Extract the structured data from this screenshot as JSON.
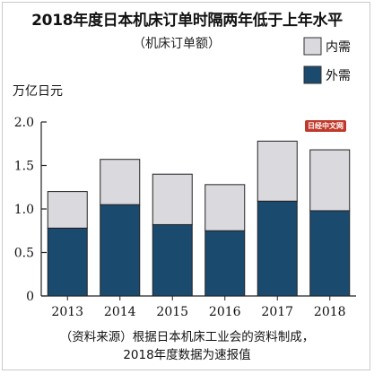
{
  "chart_data": {
    "type": "bar",
    "stacked": true,
    "title": "2018年度日本机床订单时隔两年低于上年水平",
    "subtitle": "（机床订单额）",
    "ylabel": "万亿日元",
    "categories": [
      "2013",
      "2014",
      "2015",
      "2016",
      "2017",
      "2018"
    ],
    "series": [
      {
        "name": "外需",
        "values": [
          0.78,
          1.05,
          0.82,
          0.75,
          1.09,
          0.98
        ],
        "color": "#1b4a6f"
      },
      {
        "name": "内需",
        "values": [
          0.42,
          0.52,
          0.58,
          0.53,
          0.69,
          0.7
        ],
        "color": "#d9d9de"
      }
    ],
    "ylim": [
      0,
      2.0
    ],
    "yticks": [
      "0",
      "0.5",
      "1.0",
      "1.5",
      "2.0"
    ],
    "legend": "top-right",
    "grid": false
  },
  "watermark": "日经中文网",
  "footnote": {
    "line1": "（资料来源）根据日本机床工业会的资料制成，",
    "line2": "2018年度数据为速报值"
  }
}
